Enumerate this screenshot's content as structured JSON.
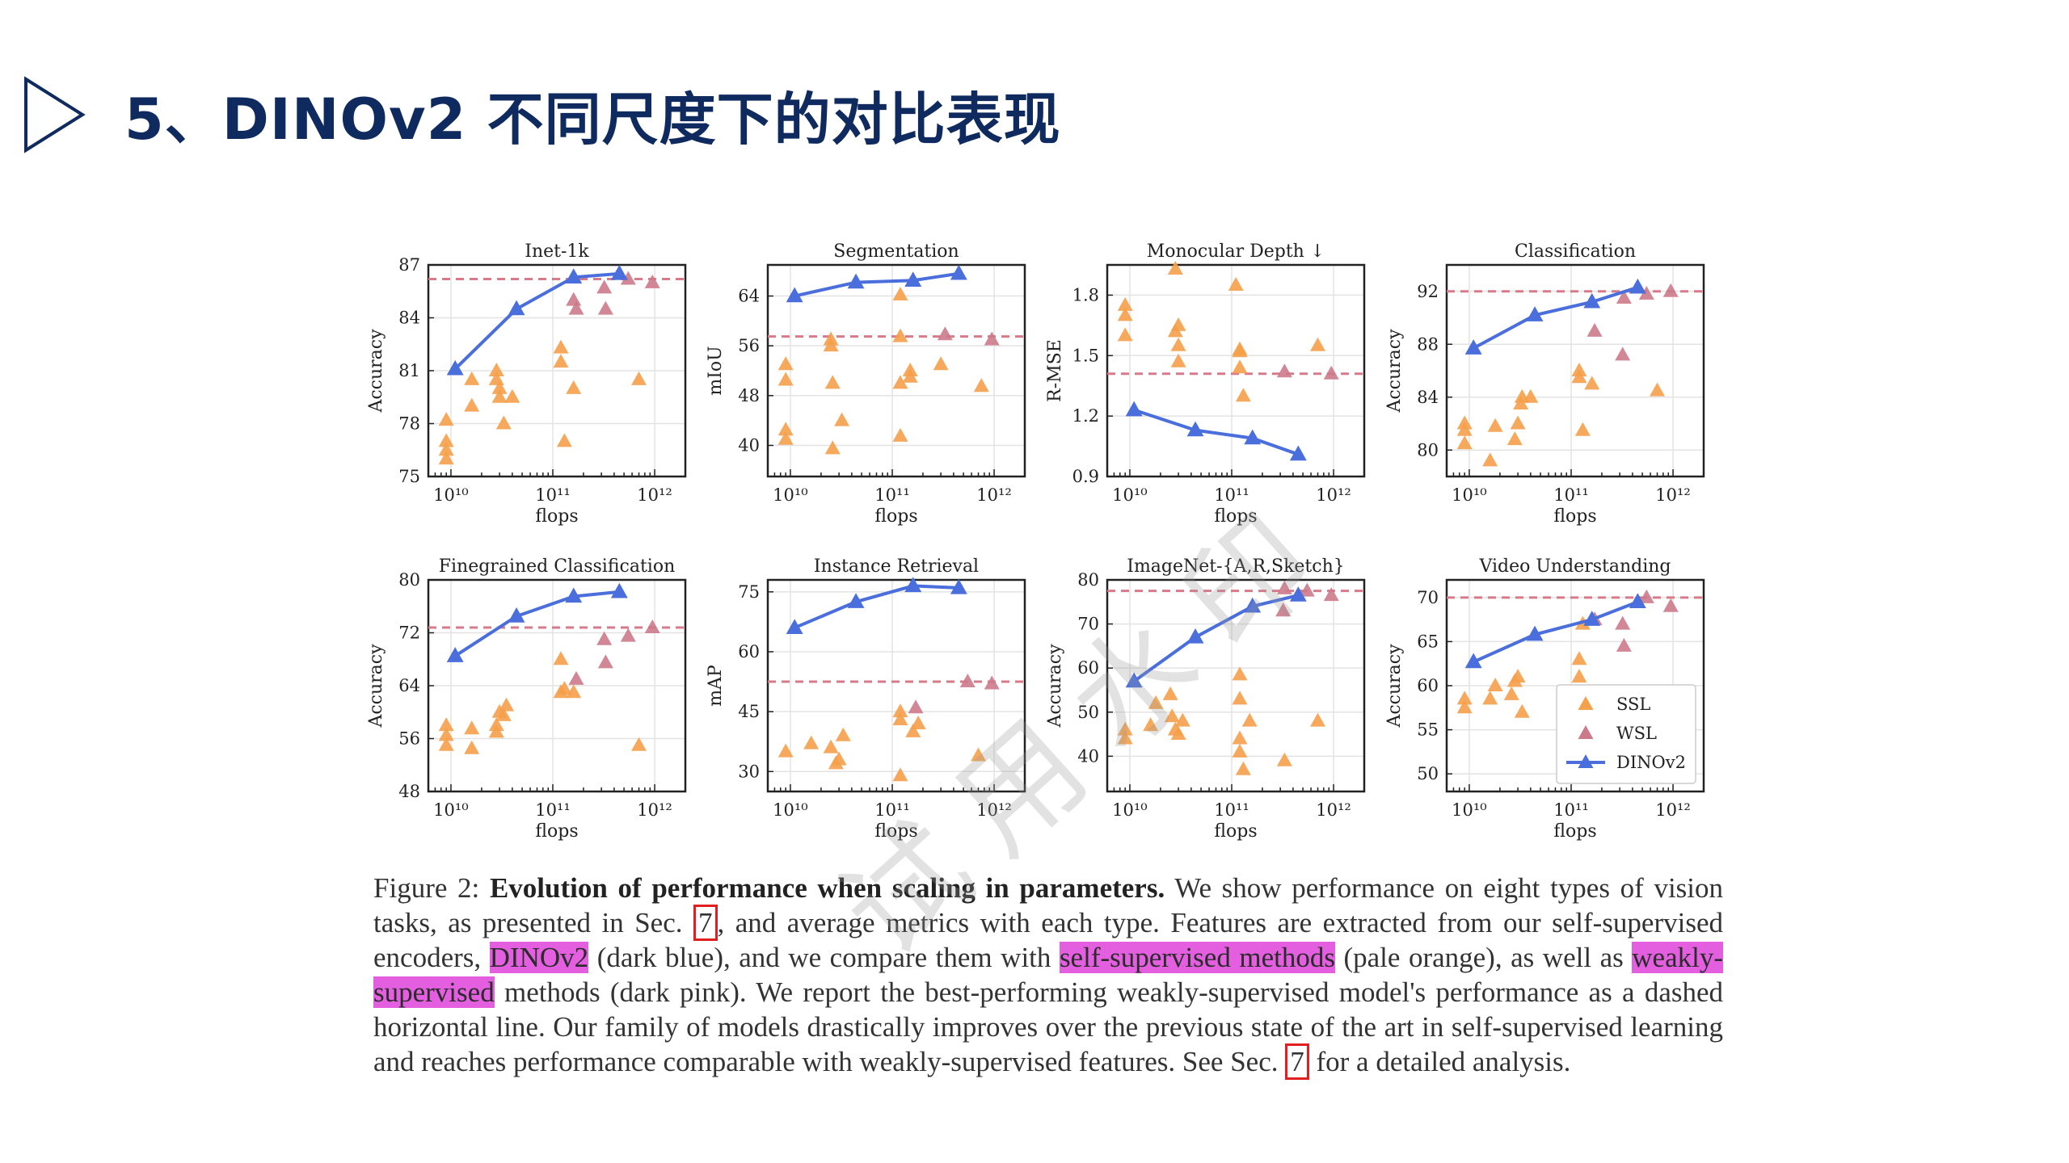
{
  "slide": {
    "title": "5、DINOv2 不同尺度下的对比表现"
  },
  "watermark": "试用水印",
  "caption": {
    "label": "Figure 2:",
    "title": "Evolution of performance when scaling in parameters.",
    "s1": "We show performance on eight types of vision tasks, as presented in Sec.",
    "ref": "7",
    "s2": ", and average metrics with each type. Features are extracted from our self-supervised encoders,",
    "hl_dinov2": "DINOv2",
    "s3": "(dark blue), and we compare them with",
    "hl_ssl": "self-supervised methods",
    "s4": "(pale orange), as well as",
    "hl_wsl": "weakly-supervised",
    "s5": "methods (dark pink). We report the best-performing weakly-supervised model's performance as a dashed horizontal line. Our family of models drastically improves over the previous state of the art in self-supervised learning and reaches performance comparable with weakly-supervised features. See Sec.",
    "s6": "for a detailed analysis."
  },
  "colors": {
    "dinov2": "#4a6fdc",
    "ssl": "#f5a04a",
    "wsl": "#cc7a8a",
    "dashed": "#d87a8a",
    "title": "#0f2a5e"
  },
  "chart_data": [
    {
      "type": "scatter",
      "title": "Inet-1k",
      "xlabel": "flops",
      "ylabel": "Accuracy",
      "xscale": "log",
      "xlim": [
        6000000000.0,
        2000000000000.0
      ],
      "ylim": [
        75,
        87
      ],
      "yticks": [
        75,
        78,
        81,
        84,
        87
      ],
      "xticks": [
        "10¹⁰",
        "10¹¹",
        "10¹²"
      ],
      "dashed": 86.2,
      "ssl": [
        [
          9000000000.0,
          78.2
        ],
        [
          9000000000.0,
          77
        ],
        [
          9000000000.0,
          76.5
        ],
        [
          9000000000.0,
          76
        ],
        [
          16000000000.0,
          79
        ],
        [
          16000000000.0,
          80.5
        ],
        [
          28000000000.0,
          80.5
        ],
        [
          28000000000.0,
          81
        ],
        [
          30000000000.0,
          79.5
        ],
        [
          30000000000.0,
          80
        ],
        [
          33000000000.0,
          78
        ],
        [
          40000000000.0,
          79.5
        ],
        [
          120000000000.0,
          82.3
        ],
        [
          120000000000.0,
          81.5
        ],
        [
          130000000000.0,
          77
        ],
        [
          160000000000.0,
          80
        ],
        [
          700000000000.0,
          80.5
        ]
      ],
      "wsl": [
        [
          160000000000.0,
          85
        ],
        [
          170000000000.0,
          84.5
        ],
        [
          320000000000.0,
          85.7
        ],
        [
          330000000000.0,
          84.5
        ],
        [
          550000000000.0,
          86.2
        ],
        [
          950000000000.0,
          86
        ]
      ],
      "dinov2": [
        [
          11000000000.0,
          81.1
        ],
        [
          44000000000.0,
          84.5
        ],
        [
          160000000000.0,
          86.3
        ],
        [
          450000000000.0,
          86.5
        ]
      ]
    },
    {
      "type": "scatter",
      "title": "Segmentation",
      "xlabel": "flops",
      "ylabel": "mIoU",
      "xscale": "log",
      "xlim": [
        6000000000.0,
        2000000000000.0
      ],
      "ylim": [
        35,
        69
      ],
      "yticks": [
        40,
        48,
        56,
        64
      ],
      "xticks": [
        "10¹⁰",
        "10¹¹",
        "10¹²"
      ],
      "dashed": 57.5,
      "ssl": [
        [
          9000000000.0,
          53
        ],
        [
          9000000000.0,
          50.5
        ],
        [
          9000000000.0,
          42.5
        ],
        [
          9000000000.0,
          41
        ],
        [
          25000000000.0,
          57
        ],
        [
          25000000000.0,
          56
        ],
        [
          26000000000.0,
          50
        ],
        [
          26000000000.0,
          39.5
        ],
        [
          32000000000.0,
          44
        ],
        [
          120000000000.0,
          64.2
        ],
        [
          120000000000.0,
          57.5
        ],
        [
          120000000000.0,
          50
        ],
        [
          120000000000.0,
          41.5
        ],
        [
          150000000000.0,
          52
        ],
        [
          150000000000.0,
          51
        ],
        [
          300000000000.0,
          53
        ],
        [
          750000000000.0,
          49.5
        ]
      ],
      "wsl": [
        [
          330000000000.0,
          57.8
        ],
        [
          950000000000.0,
          57
        ]
      ],
      "dinov2": [
        [
          11000000000.0,
          64
        ],
        [
          44000000000.0,
          66.2
        ],
        [
          160000000000.0,
          66.5
        ],
        [
          450000000000.0,
          67.6
        ]
      ]
    },
    {
      "type": "scatter",
      "title": "Monocular Depth ↓",
      "xlabel": "flops",
      "ylabel": "R-MSE",
      "xscale": "log",
      "xlim": [
        6000000000.0,
        2000000000000.0
      ],
      "ylim": [
        0.9,
        1.95
      ],
      "yticks": [
        0.9,
        1.2,
        1.5,
        1.8
      ],
      "xticks": [
        "10¹⁰",
        "10¹¹",
        "10¹²"
      ],
      "dashed": 1.41,
      "ssl": [
        [
          9000000000.0,
          1.75
        ],
        [
          9000000000.0,
          1.7
        ],
        [
          9000000000.0,
          1.6
        ],
        [
          28000000000.0,
          1.93
        ],
        [
          28000000000.0,
          1.62
        ],
        [
          30000000000.0,
          1.65
        ],
        [
          30000000000.0,
          1.55
        ],
        [
          30000000000.0,
          1.47
        ],
        [
          110000000000.0,
          1.85
        ],
        [
          120000000000.0,
          1.53
        ],
        [
          120000000000.0,
          1.52
        ],
        [
          120000000000.0,
          1.44
        ],
        [
          130000000000.0,
          1.3
        ],
        [
          700000000000.0,
          1.55
        ]
      ],
      "wsl": [
        [
          330000000000.0,
          1.42
        ],
        [
          950000000000.0,
          1.41
        ]
      ],
      "dinov2": [
        [
          11000000000.0,
          1.23
        ],
        [
          44000000000.0,
          1.13
        ],
        [
          160000000000.0,
          1.09
        ],
        [
          450000000000.0,
          1.01
        ]
      ]
    },
    {
      "type": "scatter",
      "title": "Classification",
      "xlabel": "flops",
      "ylabel": "Accuracy",
      "xscale": "log",
      "xlim": [
        6000000000.0,
        2000000000000.0
      ],
      "ylim": [
        78,
        94
      ],
      "yticks": [
        80,
        84,
        88,
        92
      ],
      "xticks": [
        "10¹⁰",
        "10¹¹",
        "10¹²"
      ],
      "dashed": 92,
      "ssl": [
        [
          9000000000.0,
          82
        ],
        [
          9000000000.0,
          81.5
        ],
        [
          9000000000.0,
          80.5
        ],
        [
          16000000000.0,
          79.2
        ],
        [
          18000000000.0,
          81.8
        ],
        [
          28000000000.0,
          80.8
        ],
        [
          30000000000.0,
          82
        ],
        [
          32000000000.0,
          83.5
        ],
        [
          33000000000.0,
          84
        ],
        [
          40000000000.0,
          84
        ],
        [
          120000000000.0,
          86
        ],
        [
          120000000000.0,
          85.5
        ],
        [
          130000000000.0,
          81.5
        ],
        [
          160000000000.0,
          85
        ],
        [
          700000000000.0,
          84.5
        ]
      ],
      "wsl": [
        [
          170000000000.0,
          89
        ],
        [
          320000000000.0,
          87.2
        ],
        [
          330000000000.0,
          91.5
        ],
        [
          550000000000.0,
          91.8
        ],
        [
          950000000000.0,
          92
        ]
      ],
      "dinov2": [
        [
          11000000000.0,
          87.7
        ],
        [
          44000000000.0,
          90.2
        ],
        [
          160000000000.0,
          91.2
        ],
        [
          450000000000.0,
          92.3
        ]
      ]
    },
    {
      "type": "scatter",
      "title": "Finegrained Classification",
      "xlabel": "flops",
      "ylabel": "Accuracy",
      "xscale": "log",
      "xlim": [
        6000000000.0,
        2000000000000.0
      ],
      "ylim": [
        48,
        80
      ],
      "yticks": [
        48,
        56,
        64,
        72,
        80
      ],
      "xticks": [
        "10¹⁰",
        "10¹¹",
        "10¹²"
      ],
      "dashed": 72.8,
      "ssl": [
        [
          9000000000.0,
          58
        ],
        [
          9000000000.0,
          56.5
        ],
        [
          9000000000.0,
          55
        ],
        [
          16000000000.0,
          54.5
        ],
        [
          16000000000.0,
          57.5
        ],
        [
          28000000000.0,
          57
        ],
        [
          28000000000.0,
          58
        ],
        [
          30000000000.0,
          60
        ],
        [
          33000000000.0,
          59.5
        ],
        [
          35000000000.0,
          61
        ],
        [
          120000000000.0,
          68
        ],
        [
          120000000000.0,
          63
        ],
        [
          130000000000.0,
          63.5
        ],
        [
          160000000000.0,
          63
        ],
        [
          700000000000.0,
          55
        ]
      ],
      "wsl": [
        [
          170000000000.0,
          65
        ],
        [
          320000000000.0,
          71
        ],
        [
          330000000000.0,
          67.5
        ],
        [
          550000000000.0,
          71.5
        ],
        [
          950000000000.0,
          72.8
        ]
      ],
      "dinov2": [
        [
          11000000000.0,
          68.5
        ],
        [
          44000000000.0,
          74.5
        ],
        [
          160000000000.0,
          77.5
        ],
        [
          450000000000.0,
          78.2
        ]
      ]
    },
    {
      "type": "scatter",
      "title": "Instance Retrieval",
      "xlabel": "flops",
      "ylabel": "mAP",
      "xscale": "log",
      "xlim": [
        6000000000.0,
        2000000000000.0
      ],
      "ylim": [
        25,
        78
      ],
      "yticks": [
        30,
        45,
        60,
        75
      ],
      "xticks": [
        "10¹⁰",
        "10¹¹",
        "10¹²"
      ],
      "dashed": 52.5,
      "ssl": [
        [
          9000000000.0,
          35
        ],
        [
          16000000000.0,
          37
        ],
        [
          25000000000.0,
          36
        ],
        [
          28000000000.0,
          32
        ],
        [
          30000000000.0,
          33
        ],
        [
          33000000000.0,
          39
        ],
        [
          120000000000.0,
          45
        ],
        [
          120000000000.0,
          43
        ],
        [
          120000000000.0,
          29
        ],
        [
          160000000000.0,
          40
        ],
        [
          180000000000.0,
          42
        ],
        [
          700000000000.0,
          34
        ]
      ],
      "wsl": [
        [
          170000000000.0,
          46
        ],
        [
          550000000000.0,
          52.5
        ],
        [
          950000000000.0,
          52
        ]
      ],
      "dinov2": [
        [
          11000000000.0,
          66
        ],
        [
          44000000000.0,
          72.5
        ],
        [
          160000000000.0,
          76.5
        ],
        [
          450000000000.0,
          76
        ]
      ]
    },
    {
      "type": "scatter",
      "title": "ImageNet-{A,R,Sketch}",
      "xlabel": "flops",
      "ylabel": "Accuracy",
      "xscale": "log",
      "xlim": [
        6000000000.0,
        2000000000000.0
      ],
      "ylim": [
        32,
        80
      ],
      "yticks": [
        40,
        50,
        60,
        70,
        80
      ],
      "xticks": [
        "10¹⁰",
        "10¹¹",
        "10¹²"
      ],
      "dashed": 77.5,
      "ssl": [
        [
          9000000000.0,
          46
        ],
        [
          9000000000.0,
          44
        ],
        [
          16000000000.0,
          47
        ],
        [
          18000000000.0,
          52
        ],
        [
          25000000000.0,
          54
        ],
        [
          26000000000.0,
          49
        ],
        [
          28000000000.0,
          46
        ],
        [
          30000000000.0,
          45
        ],
        [
          33000000000.0,
          48
        ],
        [
          120000000000.0,
          58.5
        ],
        [
          120000000000.0,
          53
        ],
        [
          120000000000.0,
          44
        ],
        [
          120000000000.0,
          41
        ],
        [
          130000000000.0,
          37
        ],
        [
          150000000000.0,
          48
        ],
        [
          330000000000.0,
          39
        ],
        [
          700000000000.0,
          48
        ]
      ],
      "wsl": [
        [
          320000000000.0,
          73
        ],
        [
          330000000000.0,
          78
        ],
        [
          550000000000.0,
          77.5
        ],
        [
          950000000000.0,
          76.5
        ]
      ],
      "dinov2": [
        [
          11000000000.0,
          57
        ],
        [
          44000000000.0,
          67
        ],
        [
          160000000000.0,
          74
        ],
        [
          450000000000.0,
          76.5
        ]
      ]
    },
    {
      "type": "scatter",
      "title": "Video Understanding",
      "xlabel": "flops",
      "ylabel": "Accuracy",
      "xscale": "log",
      "xlim": [
        6000000000.0,
        2000000000000.0
      ],
      "ylim": [
        48,
        72
      ],
      "yticks": [
        50,
        55,
        60,
        65,
        70
      ],
      "xticks": [
        "10¹⁰",
        "10¹¹",
        "10¹²"
      ],
      "dashed": 70,
      "legend": {
        "entries": [
          "SSL",
          "WSL",
          "DINOv2"
        ],
        "position": "lower right"
      },
      "ssl": [
        [
          9000000000.0,
          58.5
        ],
        [
          9000000000.0,
          57.5
        ],
        [
          16000000000.0,
          58.5
        ],
        [
          18000000000.0,
          60
        ],
        [
          26000000000.0,
          59
        ],
        [
          28000000000.0,
          60.5
        ],
        [
          30000000000.0,
          61
        ],
        [
          33000000000.0,
          57
        ],
        [
          120000000000.0,
          63
        ],
        [
          120000000000.0,
          61
        ],
        [
          130000000000.0,
          67
        ]
      ],
      "wsl": [
        [
          170000000000.0,
          67.5
        ],
        [
          320000000000.0,
          67
        ],
        [
          330000000000.0,
          64.5
        ],
        [
          550000000000.0,
          70
        ],
        [
          950000000000.0,
          69
        ]
      ],
      "dinov2": [
        [
          11000000000.0,
          62.7
        ],
        [
          44000000000.0,
          65.8
        ],
        [
          160000000000.0,
          67.5
        ],
        [
          450000000000.0,
          69.5
        ]
      ]
    }
  ]
}
